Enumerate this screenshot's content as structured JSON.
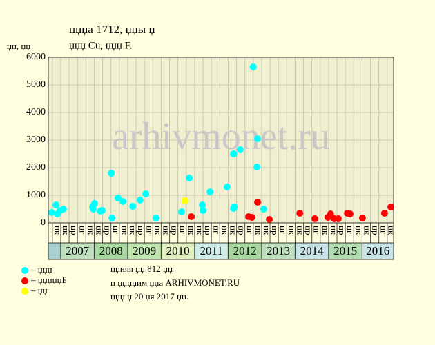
{
  "chart_data": {
    "type": "scatter",
    "title": "џџџа 1712, џџы џ",
    "subtitle": "џџџ Cu, џџџ F.",
    "y_label": "џџ, џџ",
    "watermark": "arhivmonet.ru",
    "notes": [
      "џџняя џџ 812 џџ",
      "џ џџџџим џџа ARHIVMONET.RU",
      "џџџ џ 20 џя 2017 џџ."
    ],
    "xlim": [
      2006.63,
      2016.94
    ],
    "ylim": [
      0,
      6000
    ],
    "yticks": [
      0,
      1000,
      2000,
      3000,
      4000,
      5000,
      6000
    ],
    "grid": true,
    "xticks": [
      {
        "value": 2006.75,
        "label": "џк"
      },
      {
        "value": 2007,
        "label": "џк"
      },
      {
        "value": 2007.25,
        "label": "џр"
      },
      {
        "value": 2007.5,
        "label": "џг"
      },
      {
        "value": 2007.75,
        "label": "џк"
      },
      {
        "value": 2008,
        "label": "џк"
      },
      {
        "value": 2008.25,
        "label": "џр"
      },
      {
        "value": 2008.5,
        "label": "џг"
      },
      {
        "value": 2008.75,
        "label": "џк"
      },
      {
        "value": 2009,
        "label": "џк"
      },
      {
        "value": 2009.25,
        "label": "џр"
      },
      {
        "value": 2009.5,
        "label": "џг"
      },
      {
        "value": 2009.75,
        "label": "џк"
      },
      {
        "value": 2010,
        "label": "џк"
      },
      {
        "value": 2010.25,
        "label": "џр"
      },
      {
        "value": 2010.5,
        "label": "џг"
      },
      {
        "value": 2010.75,
        "label": "џк"
      },
      {
        "value": 2011,
        "label": "џк"
      },
      {
        "value": 2011.25,
        "label": "џр"
      },
      {
        "value": 2011.5,
        "label": "џг"
      },
      {
        "value": 2011.75,
        "label": "џк"
      },
      {
        "value": 2012,
        "label": "џк"
      },
      {
        "value": 2012.25,
        "label": "џр"
      },
      {
        "value": 2012.5,
        "label": "џг"
      },
      {
        "value": 2012.75,
        "label": "џк"
      },
      {
        "value": 2013,
        "label": "џк"
      },
      {
        "value": 2013.25,
        "label": "џр"
      },
      {
        "value": 2013.5,
        "label": "џг"
      },
      {
        "value": 2013.75,
        "label": "џк"
      },
      {
        "value": 2014,
        "label": "џк"
      },
      {
        "value": 2014.25,
        "label": "џр"
      },
      {
        "value": 2014.5,
        "label": "џг"
      },
      {
        "value": 2014.75,
        "label": "џк"
      },
      {
        "value": 2015,
        "label": "џк"
      },
      {
        "value": 2015.25,
        "label": "џр"
      },
      {
        "value": 2015.5,
        "label": "џг"
      },
      {
        "value": 2015.75,
        "label": "џк"
      },
      {
        "value": 2016,
        "label": "џк"
      },
      {
        "value": 2016.25,
        "label": "џр"
      },
      {
        "value": 2016.5,
        "label": "џг"
      },
      {
        "value": 2016.75,
        "label": "џк"
      }
    ],
    "years": [
      {
        "value": 2007,
        "label": "2007",
        "color": "#c0e0c0"
      },
      {
        "value": 2008,
        "label": "2008",
        "color": "#a8d8a0"
      },
      {
        "value": 2009,
        "label": "2009",
        "color": "#c0e4b0"
      },
      {
        "value": 2010,
        "label": "2010",
        "color": "#e0f0c0"
      },
      {
        "value": 2011,
        "label": "2011",
        "color": "#d0eee8"
      },
      {
        "value": 2012,
        "label": "2012",
        "color": "#a8d8a0"
      },
      {
        "value": 2013,
        "label": "2013",
        "color": "#c0e0c0"
      },
      {
        "value": 2014,
        "label": "2014",
        "color": "#c8e4e8"
      },
      {
        "value": 2015,
        "label": "2015",
        "color": "#b0dcb0"
      },
      {
        "value": 2016,
        "label": "2016",
        "color": "#c8e4e8"
      }
    ],
    "series": [
      {
        "name": "– џџџ",
        "color": "#00ffff",
        "x": [
          2006.73,
          2006.86,
          2006.9,
          2006.98,
          2007.08,
          2007.95,
          2008.01,
          2007.97,
          2008.18,
          2008.24,
          2008.51,
          2008.53,
          2008.71,
          2008.86,
          2009.15,
          2009.37,
          2009.54,
          2009.85,
          2010.61,
          2010.84,
          2011.23,
          2011.25,
          2011.46,
          2011.97,
          2012.18,
          2012.16,
          2012.16,
          2012.36,
          2012.75,
          2012.88,
          2012.86,
          2013.06
        ],
        "values": [
          375,
          650,
          325,
          450,
          500,
          575,
          700,
          500,
          425,
          450,
          1800,
          175,
          900,
          775,
          600,
          825,
          1050,
          175,
          400,
          1625,
          650,
          450,
          1125,
          1300,
          575,
          525,
          2500,
          2650,
          5650,
          3050,
          2025,
          500
        ]
      },
      {
        "name": "– џџџџџБ",
        "color": "#ff0000",
        "x": [
          2010.9,
          2012.61,
          2012.71,
          2012.88,
          2013.23,
          2014.14,
          2014.59,
          2014.98,
          2015.06,
          2015.17,
          2015.29,
          2015.56,
          2015.64,
          2016.01,
          2016.67,
          2016.86
        ],
        "values": [
          225,
          225,
          200,
          750,
          125,
          350,
          150,
          200,
          325,
          150,
          150,
          350,
          325,
          175,
          350,
          575
        ]
      },
      {
        "name": "– џџ",
        "color": "#ffff00",
        "x": [
          2010.71
        ],
        "values": [
          800
        ]
      }
    ]
  }
}
